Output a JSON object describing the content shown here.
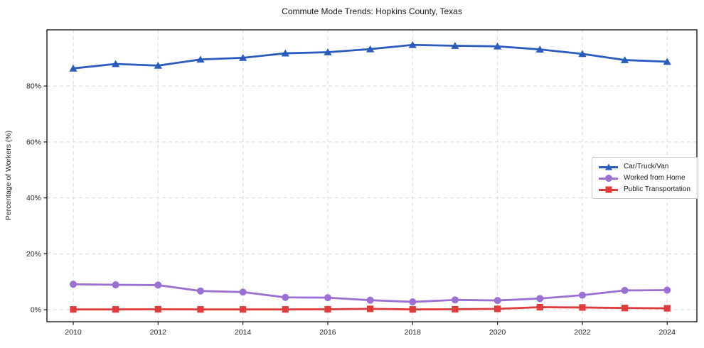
{
  "chart_data": {
    "type": "line",
    "title": "Commute Mode Trends: Hopkins County, Texas",
    "xlabel": "",
    "ylabel": "Percentage of Workers (%)",
    "x": [
      2010,
      2011,
      2012,
      2013,
      2014,
      2015,
      2016,
      2017,
      2018,
      2019,
      2020,
      2021,
      2022,
      2023,
      2024
    ],
    "series": [
      {
        "name": "Car/Truck/Van",
        "color": "#2a5cbf",
        "marker": "triangle",
        "values": [
          86.3,
          87.9,
          87.3,
          89.5,
          90.1,
          91.7,
          92.1,
          93.2,
          94.7,
          94.4,
          94.2,
          93.1,
          91.5,
          89.3,
          88.7
        ]
      },
      {
        "name": "Worked from Home",
        "color": "#9c6fd4",
        "marker": "circle",
        "values": [
          9.1,
          8.9,
          8.8,
          6.7,
          6.3,
          4.4,
          4.3,
          3.4,
          2.8,
          3.5,
          3.3,
          4.0,
          5.2,
          6.9,
          7.0
        ]
      },
      {
        "name": "Public Transportation",
        "color": "#e03c3c",
        "marker": "square",
        "values": [
          0.1,
          0.1,
          0.15,
          0.1,
          0.1,
          0.1,
          0.15,
          0.3,
          0.1,
          0.15,
          0.3,
          0.9,
          0.8,
          0.6,
          0.5
        ]
      }
    ],
    "xticks": [
      2010,
      2012,
      2014,
      2016,
      2018,
      2020,
      2022,
      2024
    ],
    "xtick_labels": [
      "2010",
      "2012",
      "2014",
      "2016",
      "2018",
      "2020",
      "2022",
      "2024"
    ],
    "yticks": [
      0,
      20,
      40,
      60,
      80
    ],
    "ytick_labels": [
      "0%",
      "20%",
      "40%",
      "60%",
      "80%"
    ],
    "xlim": [
      2009.38,
      2024.7
    ],
    "ylim": [
      -4.3,
      100.1
    ],
    "grid": true,
    "grid_style": "dashed",
    "legend_position": "center-right",
    "colors": {
      "axis": "#1a1a1a",
      "grid": "#d9d9d9",
      "tick_text": "#262626",
      "background": "#ffffff"
    }
  }
}
